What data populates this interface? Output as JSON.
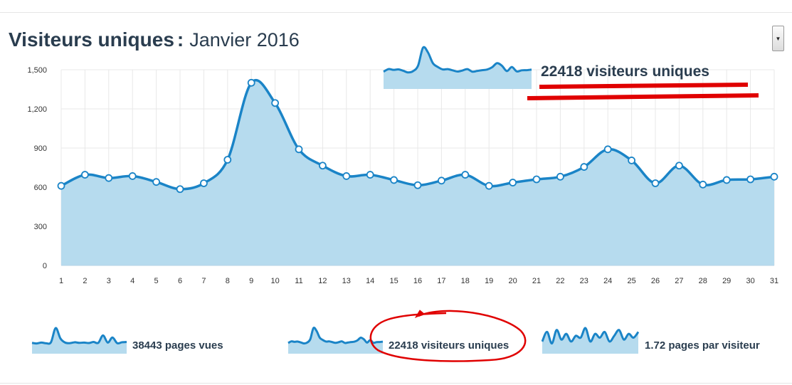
{
  "header": {
    "title": "Visiteurs uniques",
    "separator": ":",
    "period": "Janvier 2016"
  },
  "period_select": {
    "icon": "dropdown-arrow-icon",
    "glyph": "▼"
  },
  "callout": {
    "label": "22418 visiteurs uniques",
    "underline_color": "#e00000"
  },
  "chart_data": {
    "type": "area",
    "categories": [
      "1",
      "2",
      "3",
      "4",
      "5",
      "6",
      "7",
      "8",
      "9",
      "10",
      "11",
      "12",
      "13",
      "14",
      "15",
      "16",
      "17",
      "18",
      "19",
      "20",
      "21",
      "22",
      "23",
      "24",
      "25",
      "26",
      "27",
      "28",
      "29",
      "30",
      "31"
    ],
    "series": [
      {
        "values": [
          610,
          695,
          670,
          685,
          640,
          585,
          630,
          810,
          1400,
          1245,
          890,
          765,
          685,
          695,
          655,
          615,
          650,
          695,
          610,
          635,
          660,
          680,
          755,
          890,
          805,
          630,
          765,
          620,
          655,
          660,
          680
        ]
      }
    ],
    "yticks": [
      "0",
      "300",
      "600",
      "900",
      "1,200",
      "1,500"
    ],
    "ylim": [
      0,
      1500
    ],
    "grid": true,
    "colors": {
      "line": "#1a84c7",
      "fill": "#b6dbee",
      "grid": "#e8e8e8"
    }
  },
  "sparklines": [
    {
      "label": "38443 pages vues",
      "values": [
        1000,
        980,
        1010,
        985,
        1020,
        1500,
        1150,
        1010,
        990,
        1020,
        1000,
        1010,
        995,
        1030,
        1000,
        1250,
        1010,
        1180,
        990,
        1020,
        1030
      ],
      "selected": false
    },
    {
      "label": "22418 visiteurs uniques",
      "values": [
        610,
        695,
        670,
        685,
        640,
        585,
        630,
        810,
        1400,
        1245,
        890,
        765,
        685,
        695,
        655,
        615,
        650,
        695,
        610,
        635,
        660,
        680,
        755,
        890,
        805,
        630,
        765,
        620,
        655,
        660,
        680
      ],
      "selected": true,
      "highlight_color": "#e00000"
    },
    {
      "label": "1.72 pages par visiteur",
      "values": [
        1.7,
        1.75,
        1.69,
        1.76,
        1.71,
        1.74,
        1.7,
        1.73,
        1.72,
        1.77,
        1.7,
        1.74,
        1.72,
        1.75,
        1.7,
        1.73,
        1.76,
        1.71,
        1.74,
        1.72,
        1.75
      ],
      "selected": false
    }
  ]
}
